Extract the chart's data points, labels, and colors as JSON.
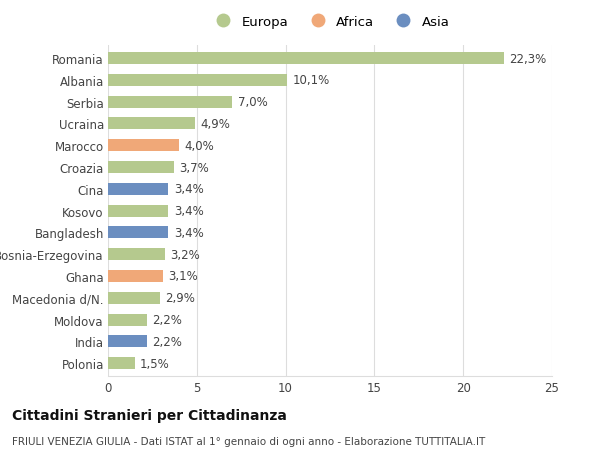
{
  "countries": [
    "Romania",
    "Albania",
    "Serbia",
    "Ucraina",
    "Marocco",
    "Croazia",
    "Cina",
    "Kosovo",
    "Bangladesh",
    "Bosnia-Erzegovina",
    "Ghana",
    "Macedonia d/N.",
    "Moldova",
    "India",
    "Polonia"
  ],
  "values": [
    22.3,
    10.1,
    7.0,
    4.9,
    4.0,
    3.7,
    3.4,
    3.4,
    3.4,
    3.2,
    3.1,
    2.9,
    2.2,
    2.2,
    1.5
  ],
  "labels": [
    "22,3%",
    "10,1%",
    "7,0%",
    "4,9%",
    "4,0%",
    "3,7%",
    "3,4%",
    "3,4%",
    "3,4%",
    "3,2%",
    "3,1%",
    "2,9%",
    "2,2%",
    "2,2%",
    "1,5%"
  ],
  "continents": [
    "Europa",
    "Europa",
    "Europa",
    "Europa",
    "Africa",
    "Europa",
    "Asia",
    "Europa",
    "Asia",
    "Europa",
    "Africa",
    "Europa",
    "Europa",
    "Asia",
    "Europa"
  ],
  "colors": {
    "Europa": "#b5c98e",
    "Africa": "#f0a878",
    "Asia": "#6b8ec0"
  },
  "legend_items": [
    {
      "label": "Europa",
      "color": "#b5c98e"
    },
    {
      "label": "Africa",
      "color": "#f0a878"
    },
    {
      "label": "Asia",
      "color": "#6b8ec0"
    }
  ],
  "xlim": [
    0,
    25
  ],
  "xticks": [
    0,
    5,
    10,
    15,
    20,
    25
  ],
  "title": "Cittadini Stranieri per Cittadinanza",
  "subtitle": "FRIULI VENEZIA GIULIA - Dati ISTAT al 1° gennaio di ogni anno - Elaborazione TUTTITALIA.IT",
  "background_color": "#ffffff",
  "bar_height": 0.55,
  "grid_color": "#dddddd",
  "label_fontsize": 8.5,
  "ytick_fontsize": 8.5,
  "xtick_fontsize": 8.5,
  "title_fontsize": 10,
  "subtitle_fontsize": 7.5
}
